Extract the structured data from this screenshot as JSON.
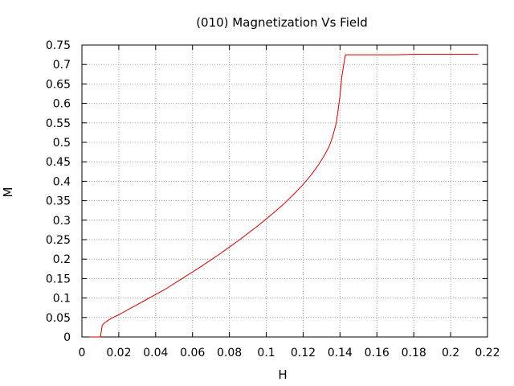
{
  "chart_data": {
    "type": "line",
    "title": "(010) Magnetization Vs Field",
    "xlabel": "H",
    "ylabel": "M",
    "xlim": [
      0,
      0.22
    ],
    "ylim": [
      0,
      0.75
    ],
    "xticks": [
      "0",
      "0.02",
      "0.04",
      "0.06",
      "0.08",
      "0.1",
      "0.12",
      "0.14",
      "0.16",
      "0.18",
      "0.2",
      "0.22"
    ],
    "yticks": [
      "0",
      "0.05",
      "0.1",
      "0.15",
      "0.2",
      "0.25",
      "0.3",
      "0.35",
      "0.4",
      "0.45",
      "0.5",
      "0.55",
      "0.6",
      "0.65",
      "0.7",
      "0.75"
    ],
    "grid": true,
    "colors": {
      "series": "#cc0000"
    },
    "series": [
      {
        "x": [
          0.004,
          0.01,
          0.011,
          0.012,
          0.014,
          0.016,
          0.02,
          0.025,
          0.03,
          0.035,
          0.04,
          0.045,
          0.05,
          0.055,
          0.06,
          0.065,
          0.07,
          0.075,
          0.08,
          0.085,
          0.09,
          0.095,
          0.1,
          0.105,
          0.11,
          0.115,
          0.12,
          0.125,
          0.128,
          0.131,
          0.134,
          0.136,
          0.138,
          0.14,
          0.141,
          0.142,
          0.143,
          0.15,
          0.16,
          0.17,
          0.18,
          0.19,
          0.2,
          0.21,
          0.215
        ],
        "y": [
          0.0,
          0.0,
          0.03,
          0.035,
          0.042,
          0.048,
          0.057,
          0.07,
          0.083,
          0.096,
          0.109,
          0.122,
          0.137,
          0.152,
          0.167,
          0.182,
          0.198,
          0.214,
          0.231,
          0.248,
          0.266,
          0.284,
          0.303,
          0.323,
          0.344,
          0.367,
          0.392,
          0.42,
          0.44,
          0.462,
          0.488,
          0.515,
          0.55,
          0.62,
          0.67,
          0.7,
          0.725,
          0.725,
          0.725,
          0.725,
          0.726,
          0.726,
          0.726,
          0.726,
          0.726
        ]
      }
    ]
  }
}
